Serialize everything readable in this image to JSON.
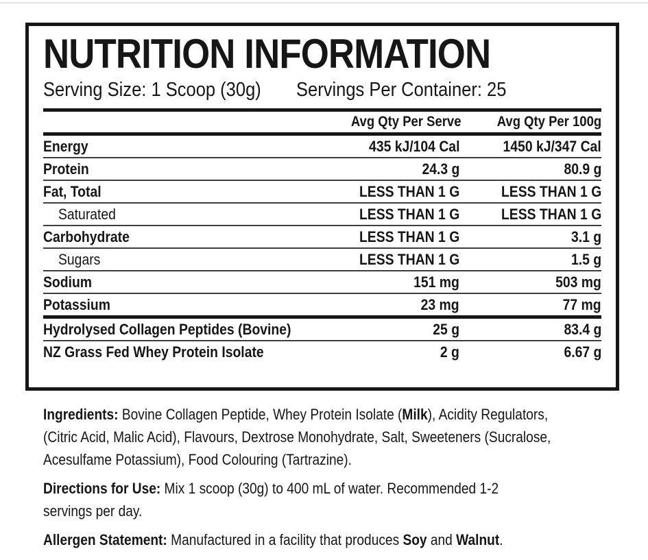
{
  "colors": {
    "ink": "#161616",
    "sep": "#3d3d3d",
    "bg": "#ffffff",
    "edge": "#e3e3e3"
  },
  "label": {
    "title": "NUTRITION INFORMATION",
    "serving_size": "Serving Size: 1 Scoop (30g)",
    "servings_per_container": "Servings Per Container: 25",
    "table": {
      "headers": {
        "per_serve": "Avg Qty Per Serve",
        "per_100g": "Avg Qty Per 100g"
      },
      "rows": [
        {
          "label": "Energy",
          "per_serve": "435 kJ/104 Cal",
          "per_100g": "1450 kJ/347 Cal"
        },
        {
          "label": "Protein",
          "per_serve": "24.3 g",
          "per_100g": "80.9 g"
        },
        {
          "label": "Fat, Total",
          "per_serve": "LESS THAN 1 G",
          "per_100g": "LESS THAN 1 G"
        },
        {
          "label": "Saturated",
          "per_serve": "LESS THAN 1 G",
          "per_100g": "LESS THAN 1 G"
        },
        {
          "label": "Carbohydrate",
          "per_serve": "LESS THAN 1 G",
          "per_100g": "3.1 g"
        },
        {
          "label": "Sugars",
          "per_serve": "LESS THAN 1 G",
          "per_100g": "1.5 g"
        },
        {
          "label": "Sodium",
          "per_serve": "151 mg",
          "per_100g": "503 mg"
        },
        {
          "label": "Potassium",
          "per_serve": "23 mg",
          "per_100g": "77 mg"
        },
        {
          "label": "Hydrolysed Collagen Peptides (Bovine)",
          "per_serve": "25 g",
          "per_100g": "83.4 g"
        },
        {
          "label": "NZ Grass Fed Whey Protein Isolate",
          "per_serve": "2 g",
          "per_100g": "6.67 g"
        }
      ]
    }
  },
  "sections": {
    "ingredients": {
      "lines": [
        [
          {
            "t": "Ingredients:",
            "b": true
          },
          {
            "t": " Bovine Collagen Peptide, Whey Protein Isolate (",
            "b": false
          },
          {
            "t": "Milk",
            "b": true
          },
          {
            "t": "), Acidity Regulators,",
            "b": false
          }
        ],
        [
          {
            "t": "(Citric Acid, Malic Acid), Flavours, Dextrose Monohydrate, Salt, Sweeteners (Sucralose,",
            "b": false
          }
        ],
        [
          {
            "t": "Acesulfame Potassium), Food Colouring (Tartrazine).",
            "b": false
          }
        ]
      ]
    },
    "directions": {
      "lines": [
        [
          {
            "t": "Directions for Use:",
            "b": true
          },
          {
            "t": " Mix 1 scoop (30g) to 400 mL of water. Recommended 1-2",
            "b": false
          }
        ],
        [
          {
            "t": "servings per day.",
            "b": false
          }
        ]
      ]
    },
    "allergen": {
      "lines": [
        [
          {
            "t": "Allergen Statement:",
            "b": true
          },
          {
            "t": " Manufactured in a facility that produces ",
            "b": false
          },
          {
            "t": "Soy",
            "b": true
          },
          {
            "t": " and ",
            "b": false
          },
          {
            "t": "Walnut",
            "b": true
          },
          {
            "t": ".",
            "b": false
          }
        ]
      ]
    }
  }
}
